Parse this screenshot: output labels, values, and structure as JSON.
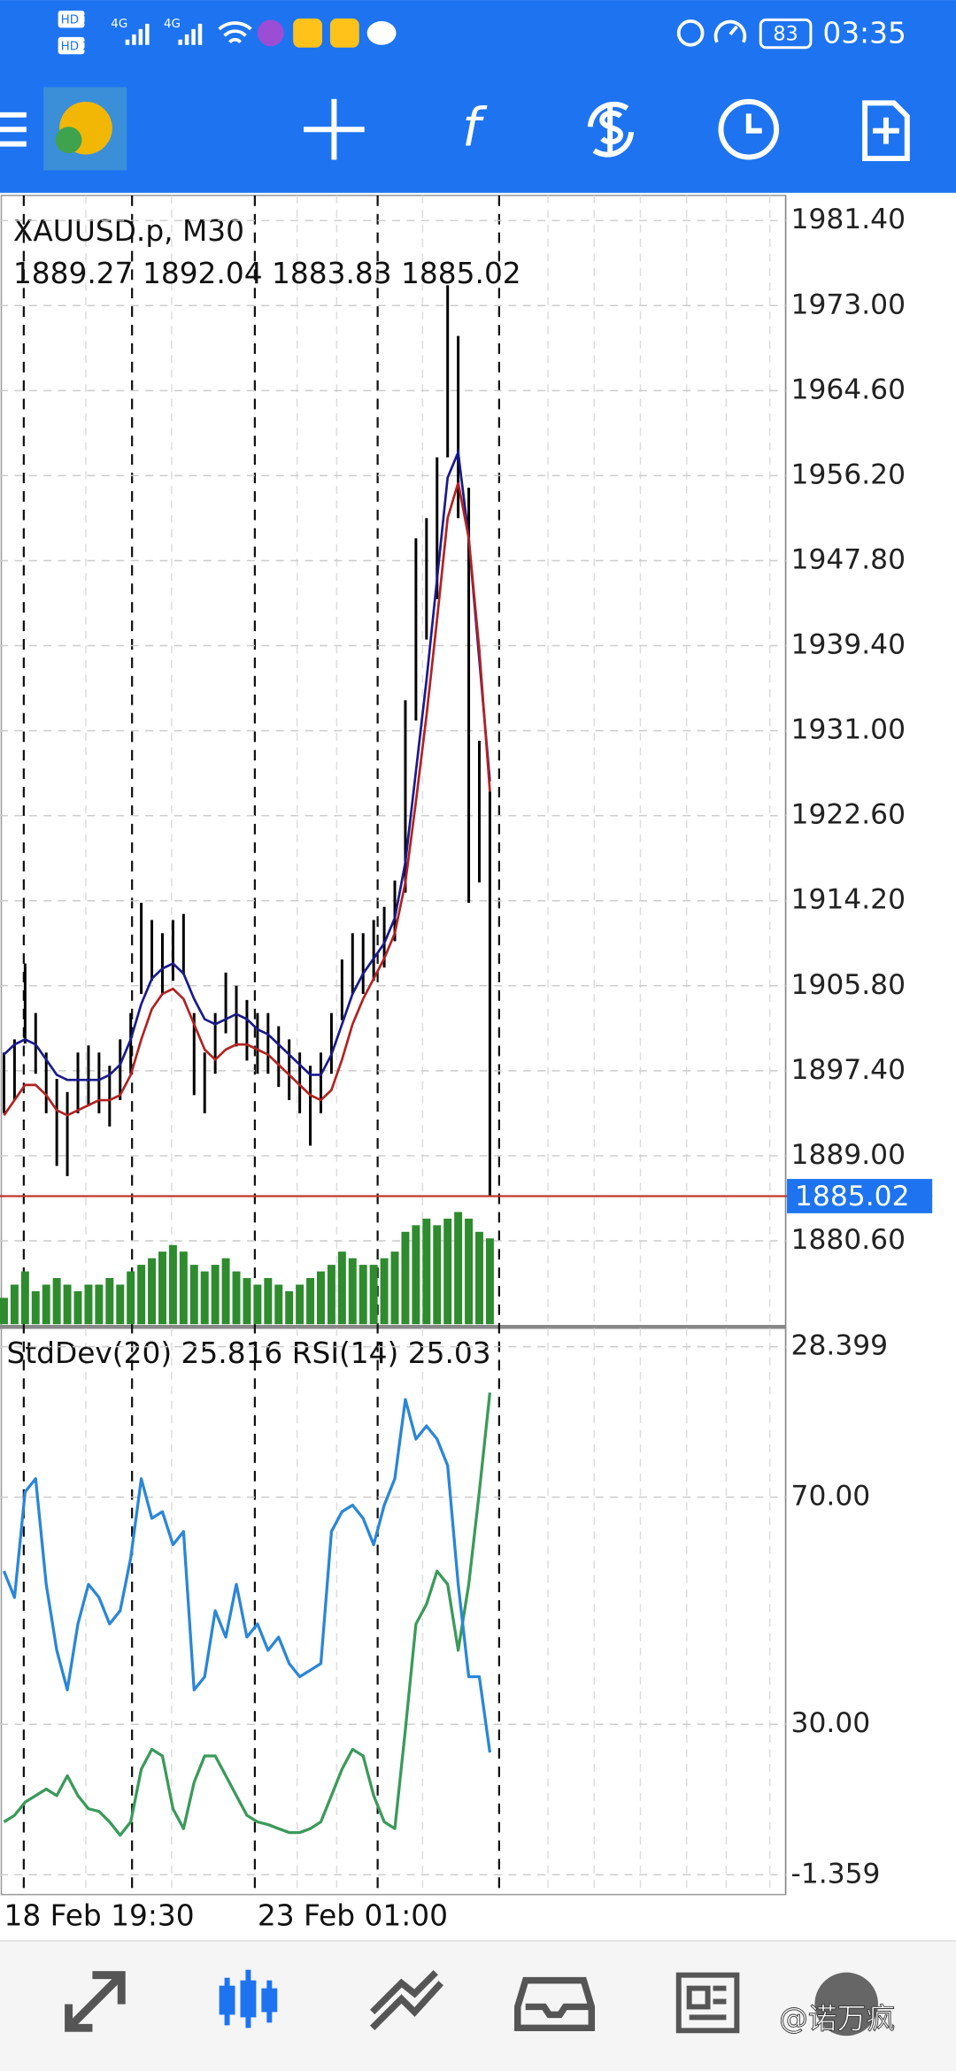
{
  "status_bar": {
    "sim1": "HD 1",
    "sim2": "HD 2",
    "net1": "4G",
    "net2": "4G",
    "battery": 83,
    "time": "03:35"
  },
  "toolbar": {
    "indicators_icon": "f"
  },
  "chart_data": [
    {
      "type": "bars",
      "title": "XAUUSD.p, M30",
      "subtitle": "1889.27 1892.04 1883.83 1885.02",
      "color": "#000000",
      "high": [
        1899.2,
        1900.5,
        1908.0,
        1903.1,
        1899.2,
        1896.6,
        1895.3,
        1899.2,
        1899.9,
        1899.2,
        1897.9,
        1900.5,
        1903.1,
        1914.0,
        1912.3,
        1911.0,
        1912.3,
        1912.9,
        1903.1,
        1899.2,
        1903.1,
        1907.1,
        1905.8,
        1904.4,
        1903.1,
        1903.1,
        1901.8,
        1900.5,
        1899.2,
        1897.9,
        1899.2,
        1903.1,
        1908.4,
        1911.0,
        1911.0,
        1912.3,
        1913.6,
        1916.2,
        1934.0,
        1950.0,
        1952.0,
        1958.0,
        1975.0,
        1970.0,
        1955.0,
        1930.0,
        1925.0
      ],
      "low": [
        1893.2,
        1894.5,
        1900.1,
        1897.1,
        1893.2,
        1888.0,
        1887.0,
        1893.2,
        1893.9,
        1893.2,
        1891.9,
        1894.5,
        1897.1,
        1905.0,
        1906.3,
        1905.0,
        1906.3,
        1906.9,
        1895.0,
        1893.2,
        1897.1,
        1901.1,
        1899.8,
        1898.4,
        1897.1,
        1897.1,
        1895.8,
        1894.5,
        1893.2,
        1890.0,
        1893.2,
        1897.1,
        1902.4,
        1905.0,
        1905.0,
        1906.3,
        1907.6,
        1910.2,
        1915.0,
        1932.0,
        1940.0,
        1944.0,
        1958.0,
        1952.0,
        1914.0,
        1916.0,
        1885.0
      ],
      "series": [
        {
          "color": "#1a1a8c",
          "values": [
            1899.0,
            1900.0,
            1900.5,
            1900.0,
            1898.5,
            1897.0,
            1896.5,
            1896.5,
            1896.5,
            1896.5,
            1897.0,
            1898.0,
            1900.5,
            1904.0,
            1906.5,
            1907.5,
            1908.0,
            1907.0,
            1904.5,
            1902.5,
            1902.0,
            1902.5,
            1903.0,
            1902.5,
            1901.5,
            1901.0,
            1900.0,
            1899.0,
            1898.0,
            1897.0,
            1897.0,
            1899.0,
            1902.0,
            1905.0,
            1907.0,
            1908.5,
            1910.0,
            1912.5,
            1918.0,
            1927.0,
            1936.0,
            1946.0,
            1956.0,
            1958.5,
            1950.0,
            1938.0,
            1926.0
          ]
        },
        {
          "color": "#b22222",
          "values": [
            1893.0,
            1894.5,
            1896.0,
            1896.0,
            1895.0,
            1893.5,
            1893.0,
            1893.5,
            1894.0,
            1894.5,
            1894.5,
            1895.0,
            1897.0,
            1900.5,
            1903.5,
            1905.0,
            1905.5,
            1904.5,
            1902.0,
            1899.5,
            1898.5,
            1899.5,
            1900.0,
            1900.0,
            1899.5,
            1899.0,
            1898.0,
            1897.0,
            1896.0,
            1895.0,
            1894.5,
            1895.5,
            1898.5,
            1902.0,
            1904.5,
            1906.5,
            1908.5,
            1911.0,
            1916.0,
            1924.0,
            1932.5,
            1942.0,
            1952.0,
            1955.5,
            1950.0,
            1939.0,
            1925.0
          ]
        }
      ],
      "volume": {
        "color": "#2e8b2e",
        "values": [
          20,
          30,
          40,
          25,
          30,
          35,
          30,
          25,
          30,
          30,
          35,
          30,
          40,
          45,
          50,
          55,
          60,
          55,
          45,
          40,
          45,
          50,
          40,
          35,
          30,
          35,
          30,
          25,
          30,
          35,
          40,
          45,
          55,
          50,
          45,
          45,
          50,
          55,
          70,
          75,
          80,
          75,
          80,
          85,
          80,
          70,
          65
        ]
      },
      "last_price": 1885.02,
      "last_price_color": "#1e74f0",
      "ylim": [
        1872.1,
        1983.88
      ],
      "yticks": [
        {
          "value": 1981.4,
          "label": "1981.40"
        },
        {
          "value": 1973,
          "label": "1973.00"
        },
        {
          "value": 1964.6,
          "label": "1964.60"
        },
        {
          "value": 1956.2,
          "label": "1956.20"
        },
        {
          "value": 1947.8,
          "label": "1947.80"
        },
        {
          "value": 1939.4,
          "label": "1939.40"
        },
        {
          "value": 1931,
          "label": "1931.00"
        },
        {
          "value": 1922.6,
          "label": "1922.60"
        },
        {
          "value": 1914.2,
          "label": "1914.20"
        },
        {
          "value": 1905.8,
          "label": "1905.80"
        },
        {
          "value": 1897.4,
          "label": "1897.40"
        },
        {
          "value": 1889,
          "label": "1889.00"
        },
        {
          "value": 1880.6,
          "label": "1880.60"
        }
      ],
      "xtick_labels": [
        "18 Feb 19:30",
        "23 Feb 01:00"
      ],
      "grid": true
    },
    {
      "type": "line",
      "title": "StdDev(20) 25.816 RSI(14) 25.03",
      "series": [
        {
          "color": "#3a9a5a",
          "values": [
            1.62,
            1.99,
            2.73,
            3.1,
            3.47,
            3.1,
            4.22,
            3.1,
            2.36,
            2.21,
            1.62,
            0.87,
            1.62,
            4.59,
            5.71,
            5.34,
            2.36,
            1.24,
            3.85,
            5.34,
            5.34,
            4.22,
            3.1,
            1.99,
            1.62,
            1.47,
            1.24,
            1.02,
            1.02,
            1.24,
            1.62,
            3.1,
            4.59,
            5.71,
            5.34,
            3.1,
            1.62,
            1.24,
            6.82,
            12.77,
            13.89,
            15.75,
            15.01,
            11.29,
            15.01,
            20.22,
            25.816
          ]
        },
        {
          "color": "#2a86d8",
          "axis": "y2",
          "values": [
            56.98,
            52.33,
            70.93,
            73.26,
            54.65,
            43.02,
            36.05,
            47.67,
            54.65,
            52.33,
            47.67,
            50.0,
            59.3,
            73.26,
            66.28,
            67.44,
            61.63,
            63.95,
            36.05,
            38.37,
            50.0,
            45.35,
            54.65,
            45.35,
            47.67,
            43.02,
            45.35,
            40.7,
            38.37,
            39.53,
            40.7,
            63.95,
            67.44,
            68.6,
            66.28,
            61.63,
            68.6,
            73.26,
            87.21,
            80.23,
            82.56,
            80.23,
            75.58,
            54.65,
            38.37,
            38.37,
            25.03
          ]
        }
      ],
      "ylim": [
        -2.475,
        29.515
      ],
      "yticks": [
        28.399,
        -1.359
      ],
      "y2lim": [
        0,
        100
      ],
      "y2ticks": [
        {
          "value": 70,
          "label": "70.00"
        },
        {
          "value": 30,
          "label": "30.00"
        }
      ],
      "grid": true
    }
  ],
  "watermark": "@诺万疯"
}
